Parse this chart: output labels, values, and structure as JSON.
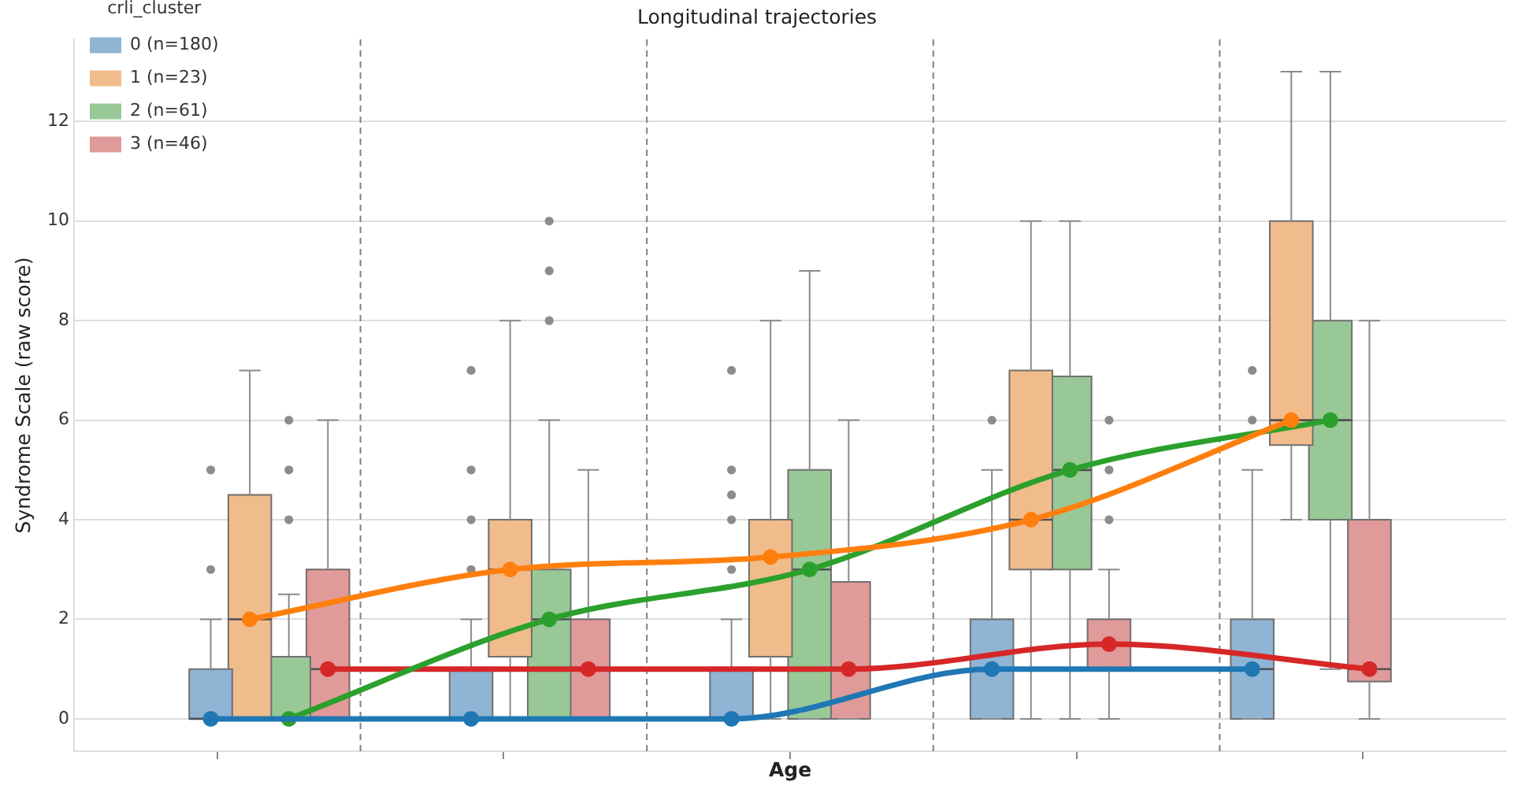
{
  "chart_data": {
    "type": "box",
    "title": "Longitudinal trajectories",
    "xlabel": "Age",
    "ylabel": "Syndrome Scale (raw score)",
    "legend_title": "crli_cluster",
    "legend": "top left",
    "grid": "y",
    "tick_labels": "y",
    "marker": "circle",
    "categories": [
      null,
      null,
      null,
      null,
      null
    ],
    "ylim": [
      -0.65,
      13.65
    ],
    "yticks": [
      0,
      2,
      4,
      6,
      8,
      10,
      12
    ],
    "series": [
      {
        "name": "0 (n=180)",
        "color": "#8fb4d4",
        "boxes": [
          {
            "low": 0,
            "q1": 0,
            "median": 0,
            "q3": 1,
            "high": 2,
            "outliers": [
              3,
              5
            ]
          },
          {
            "low": 0,
            "q1": 0,
            "median": 0,
            "q3": 1,
            "high": 2,
            "outliers": [
              3,
              4,
              5,
              7
            ]
          },
          {
            "low": 0,
            "q1": 0,
            "median": 0,
            "q3": 1,
            "high": 2,
            "outliers": [
              3,
              4,
              4.5,
              5,
              7
            ]
          },
          {
            "low": 0,
            "q1": 0,
            "median": 1,
            "q3": 2,
            "high": 5,
            "outliers": [
              6
            ]
          },
          {
            "low": 0,
            "q1": 0,
            "median": 1,
            "q3": 2,
            "high": 5,
            "outliers": [
              6,
              7
            ]
          }
        ]
      },
      {
        "name": "1 (n=23)",
        "color": "#f0bc8c",
        "boxes": [
          {
            "low": 0,
            "q1": 0,
            "median": 2,
            "q3": 4.5,
            "high": 7
          },
          {
            "low": 0,
            "q1": 1.25,
            "median": 3,
            "q3": 4,
            "high": 8
          },
          {
            "low": 0,
            "q1": 1.25,
            "median": 3.25,
            "q3": 4,
            "high": 8
          },
          {
            "low": 0,
            "q1": 3,
            "median": 4,
            "q3": 7,
            "high": 10
          },
          {
            "low": 4,
            "q1": 5.5,
            "median": 6,
            "q3": 10,
            "high": 13
          }
        ]
      },
      {
        "name": "2 (n=61)",
        "color": "#98c896",
        "boxes": [
          {
            "low": 0,
            "q1": 0,
            "median": 0,
            "q3": 1.25,
            "high": 2.5,
            "outliers": [
              4,
              5,
              6
            ]
          },
          {
            "low": 0,
            "q1": 0,
            "median": 2,
            "q3": 3,
            "high": 6,
            "outliers": [
              8,
              9,
              10
            ]
          },
          {
            "low": 0,
            "q1": 0,
            "median": 3,
            "q3": 5,
            "high": 9
          },
          {
            "low": 0,
            "q1": 3,
            "median": 5,
            "q3": 6.88,
            "high": 10
          },
          {
            "low": 1,
            "q1": 4,
            "median": 6,
            "q3": 8,
            "high": 13
          }
        ]
      },
      {
        "name": "3 (n=46)",
        "color": "#e09a9a",
        "boxes": [
          {
            "low": 0,
            "q1": 0,
            "median": 1,
            "q3": 3,
            "high": 6
          },
          {
            "low": 0,
            "q1": 0,
            "median": 1,
            "q3": 2,
            "high": 5
          },
          {
            "low": 0,
            "q1": 0,
            "median": 1,
            "q3": 2.75,
            "high": 6
          },
          {
            "low": 0,
            "q1": 1,
            "median": 1.5,
            "q3": 2,
            "high": 3,
            "outliers": [
              4,
              5,
              6
            ]
          },
          {
            "low": 0,
            "q1": 0.75,
            "median": 1,
            "q3": 4,
            "high": 8
          }
        ]
      },
      {
        "type": "line",
        "color": "#1f77b4",
        "values": [
          0,
          0,
          0,
          1,
          1
        ]
      },
      {
        "type": "line",
        "color": "#ff7f0e",
        "values": [
          2,
          3,
          3.25,
          4,
          6
        ]
      },
      {
        "type": "line",
        "color": "#2ca02c",
        "values": [
          0,
          2,
          3,
          5,
          6
        ]
      },
      {
        "type": "line",
        "color": "#d62728",
        "values": [
          1,
          1,
          1,
          1.5,
          1
        ]
      }
    ]
  }
}
